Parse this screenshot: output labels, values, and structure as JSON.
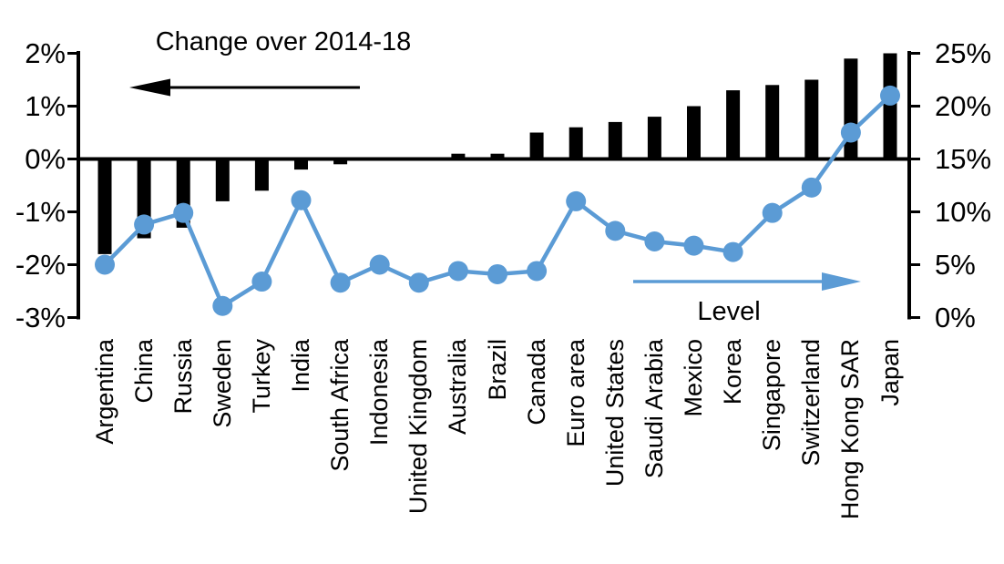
{
  "figure": {
    "background": "#FFFFFF"
  },
  "colors": {
    "bar": "#000000",
    "line": "#5B9BD5",
    "marker": "#5B9BD5",
    "axis": "#000000",
    "text": "#000000"
  },
  "chart_data": {
    "type": "bar+line dual-axis combo",
    "categories": [
      "Argentina",
      "China",
      "Russia",
      "Sweden",
      "Turkey",
      "India",
      "South Africa",
      "Indonesia",
      "United Kingdom",
      "Australia",
      "Brazil",
      "Canada",
      "Euro area",
      "United States",
      "Saudi Arabia",
      "Mexico",
      "Korea",
      "Singapore",
      "Switzerland",
      "Hong Kong SAR",
      "Japan"
    ],
    "series": [
      {
        "name": "Change over 2014-18",
        "type": "bar",
        "axis": "left",
        "unit": "%",
        "values": [
          -1.8,
          -1.5,
          -1.3,
          -0.8,
          -0.6,
          -0.2,
          -0.1,
          0,
          0,
          0.1,
          0.1,
          0.5,
          0.6,
          0.7,
          0.8,
          1.0,
          1.3,
          1.4,
          1.5,
          1.9,
          2.0
        ]
      },
      {
        "name": "Level",
        "type": "line",
        "axis": "right",
        "unit": "%",
        "values": [
          5.0,
          8.8,
          9.9,
          1.1,
          3.4,
          11.1,
          3.3,
          5.0,
          3.3,
          4.4,
          4.1,
          4.4,
          11.0,
          8.2,
          7.2,
          6.8,
          6.2,
          9.9,
          12.3,
          17.5,
          21.0
        ]
      }
    ],
    "left_axis": {
      "min": -3,
      "max": 2,
      "tick_labels": [
        "2%",
        "1%",
        "0%",
        "-1%",
        "-2%",
        "-3%"
      ],
      "tick_values": [
        2,
        1,
        0,
        -1,
        -2,
        -3
      ]
    },
    "right_axis": {
      "min": 0,
      "max": 25,
      "tick_labels": [
        "25%",
        "20%",
        "15%",
        "10%",
        "5%",
        "0%"
      ],
      "tick_values": [
        25,
        20,
        15,
        10,
        5,
        0
      ]
    },
    "annotations": [
      {
        "text": "Change over 2014-18",
        "arrow": "left",
        "color": "#000000"
      },
      {
        "text": "Level",
        "arrow": "right",
        "color": "#5B9BD5"
      }
    ],
    "grid": "off",
    "legend": "none"
  }
}
